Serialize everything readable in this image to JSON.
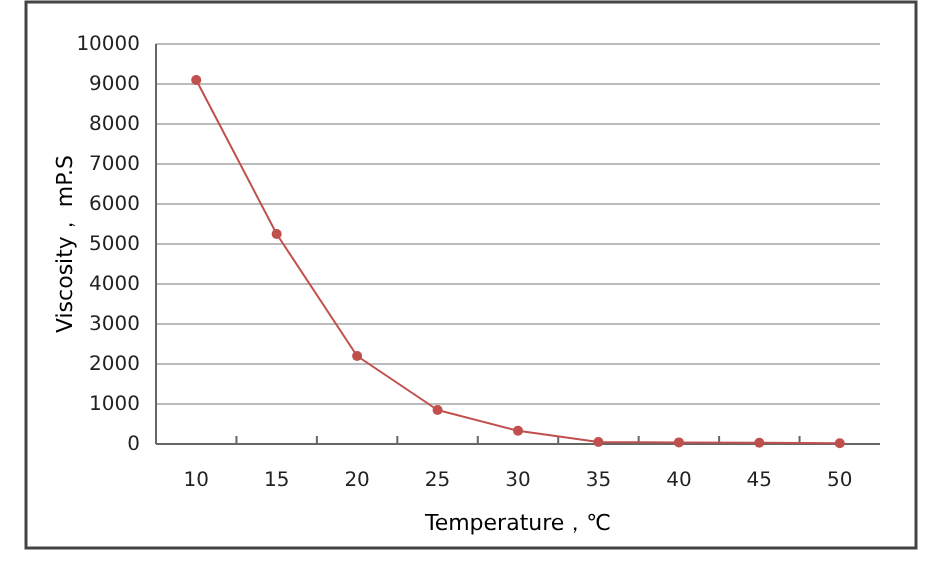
{
  "chart_data": {
    "type": "line",
    "xlabel": "Temperature，℃",
    "ylabel": "Viscosity， mP.S",
    "categories": [
      "10",
      "15",
      "20",
      "25",
      "30",
      "35",
      "40",
      "45",
      "50"
    ],
    "series": [
      {
        "color": "#c0504d",
        "values": [
          9100,
          5250,
          2200,
          850,
          330,
          50,
          40,
          30,
          20
        ]
      }
    ],
    "ylim": [
      0,
      10000
    ],
    "yticks": [
      0,
      1000,
      2000,
      3000,
      4000,
      5000,
      6000,
      7000,
      8000,
      9000,
      10000
    ],
    "grid": "y",
    "marker": "circle",
    "line_style": "solid"
  }
}
